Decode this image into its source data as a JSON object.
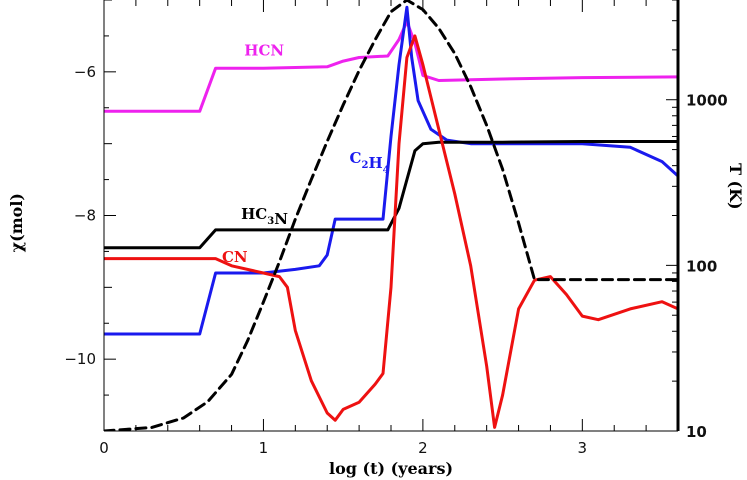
{
  "chart_data": {
    "type": "line",
    "xlabel": "log (t) (years)",
    "ylabel": "χ(mol)",
    "y2label": "T (K)",
    "xlim": [
      0,
      3.6
    ],
    "ylim": [
      -11,
      -5
    ],
    "y2lim": [
      10,
      4000
    ],
    "y2scale": "log",
    "x_ticks": [
      0,
      1,
      2,
      3
    ],
    "y_ticks": [
      -10,
      -8,
      -6
    ],
    "y2_ticks": [
      10,
      100,
      1000
    ],
    "colors": {
      "HCN": "#ee22ee",
      "C2H4": "#1a1aee",
      "HC3N": "#000000",
      "CN": "#ee1111",
      "T": "#000000"
    },
    "series": [
      {
        "name": "HCN",
        "id": "HCN",
        "axis": "left",
        "label_main": "HCN",
        "label_sub": "",
        "x": [
          0,
          0.6,
          0.7,
          1.0,
          1.4,
          1.5,
          1.6,
          1.78,
          1.85,
          1.9,
          1.95,
          2.0,
          2.1,
          2.5,
          3.0,
          3.6
        ],
        "y": [
          -6.55,
          -6.55,
          -5.95,
          -5.95,
          -5.93,
          -5.85,
          -5.8,
          -5.78,
          -5.55,
          -5.3,
          -5.6,
          -6.05,
          -6.12,
          -6.1,
          -6.08,
          -6.07
        ]
      },
      {
        "name": "C2H4",
        "id": "C2H4",
        "axis": "left",
        "label_main": "C",
        "label_sub": "2",
        "label_main2": "H",
        "label_sub2": "4",
        "x": [
          0,
          0.6,
          0.7,
          1.0,
          1.2,
          1.35,
          1.4,
          1.45,
          1.6,
          1.75,
          1.8,
          1.85,
          1.9,
          1.93,
          1.97,
          2.05,
          2.15,
          2.3,
          2.5,
          3.0,
          3.3,
          3.5,
          3.6
        ],
        "y": [
          -9.65,
          -9.65,
          -8.8,
          -8.8,
          -8.75,
          -8.7,
          -8.55,
          -8.05,
          -8.05,
          -8.05,
          -6.9,
          -5.9,
          -5.1,
          -5.8,
          -6.4,
          -6.8,
          -6.95,
          -7.0,
          -7.0,
          -7.0,
          -7.05,
          -7.25,
          -7.45
        ]
      },
      {
        "name": "HC3N",
        "id": "HC3N",
        "axis": "left",
        "label_main": "HC",
        "label_sub": "3",
        "label_main2": "N",
        "label_sub2": "",
        "x": [
          0,
          0.6,
          0.7,
          1.0,
          1.5,
          1.78,
          1.85,
          1.9,
          1.95,
          2.0,
          2.1,
          2.5,
          3.0,
          3.6
        ],
        "y": [
          -8.45,
          -8.45,
          -8.2,
          -8.2,
          -8.2,
          -8.2,
          -7.9,
          -7.5,
          -7.1,
          -7.0,
          -6.98,
          -6.98,
          -6.97,
          -6.97
        ]
      },
      {
        "name": "CN",
        "id": "CN",
        "axis": "left",
        "label_main": "CN",
        "label_sub": "",
        "x": [
          0,
          0.7,
          0.8,
          1.0,
          1.1,
          1.15,
          1.2,
          1.3,
          1.4,
          1.45,
          1.5,
          1.6,
          1.7,
          1.75,
          1.8,
          1.85,
          1.9,
          1.95,
          2.0,
          2.1,
          2.2,
          2.3,
          2.4,
          2.45,
          2.5,
          2.6,
          2.7,
          2.8,
          2.9,
          3.0,
          3.1,
          3.3,
          3.5,
          3.6
        ],
        "y": [
          -8.6,
          -8.6,
          -8.7,
          -8.8,
          -8.85,
          -9.0,
          -9.6,
          -10.3,
          -10.75,
          -10.85,
          -10.7,
          -10.6,
          -10.35,
          -10.2,
          -9.0,
          -7.0,
          -5.8,
          -5.5,
          -5.9,
          -6.8,
          -7.7,
          -8.7,
          -10.1,
          -10.95,
          -10.5,
          -9.3,
          -8.9,
          -8.85,
          -9.1,
          -9.4,
          -9.45,
          -9.3,
          -9.2,
          -9.3
        ]
      },
      {
        "name": "T",
        "id": "T",
        "axis": "right",
        "dashed": true,
        "x": [
          0,
          0.3,
          0.5,
          0.65,
          0.8,
          0.9,
          1.0,
          1.1,
          1.2,
          1.3,
          1.4,
          1.5,
          1.6,
          1.7,
          1.8,
          1.9,
          2.0,
          2.1,
          2.2,
          2.3,
          2.4,
          2.5,
          2.6,
          2.7,
          3.0,
          3.6
        ],
        "y": [
          10,
          10.5,
          12,
          15,
          22,
          35,
          60,
          105,
          190,
          330,
          560,
          930,
          1500,
          2300,
          3400,
          4000,
          3500,
          2700,
          1900,
          1200,
          700,
          380,
          180,
          82,
          82,
          82
        ]
      }
    ],
    "label_positions_data": [
      {
        "id": "HCN",
        "x": 0.88,
        "y": -5.77
      },
      {
        "id": "C2H4",
        "x": 1.54,
        "y": -7.27
      },
      {
        "id": "HC3N",
        "x": 0.86,
        "y": -8.05
      },
      {
        "id": "CN",
        "x": 0.74,
        "y": -8.65
      }
    ]
  }
}
